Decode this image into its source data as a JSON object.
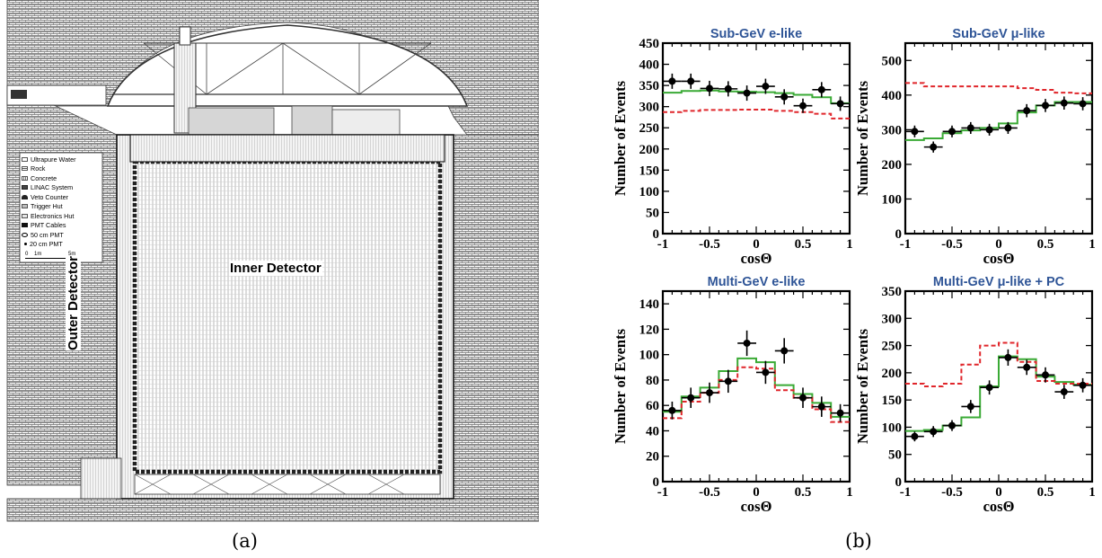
{
  "captions": {
    "left": "(a)",
    "right": "(b)"
  },
  "detector": {
    "legend": [
      {
        "icon": "ultrapure-water-icon",
        "label": "Ultrapure Water"
      },
      {
        "icon": "rock-icon",
        "label": "Rock"
      },
      {
        "icon": "concrete-icon",
        "label": "Concrete"
      },
      {
        "icon": "linac-system-icon",
        "label": "LINAC System"
      },
      {
        "icon": "veto-counter-icon",
        "label": "Veto Counter"
      },
      {
        "icon": "trigger-hut-icon",
        "label": "Trigger Hut"
      },
      {
        "icon": "electronics-hut-icon",
        "label": "Electronics Hut"
      },
      {
        "icon": "pmt-cables-icon",
        "label": "PMT Cables"
      },
      {
        "icon": "pmt-50cm-icon",
        "label": "50 cm PMT"
      },
      {
        "icon": "pmt-20cm-icon",
        "label": "20 cm PMT"
      }
    ],
    "scale_labels": [
      "0",
      "1m",
      "5m"
    ],
    "inner_label": "Inner Detector",
    "outer_label": "Outer Detector",
    "colors": {
      "hatch": "#555555",
      "frame": "#222222",
      "pmt_grid": "#9a9a9a"
    }
  },
  "chart_data": [
    {
      "type": "line",
      "title": "Sub-GeV e-like",
      "xlabel": "cosΘ",
      "ylabel": "Number of Events",
      "xlim": [
        -1,
        1
      ],
      "ylim": [
        0,
        450
      ],
      "xticks": [
        -1,
        -0.5,
        0,
        0.5,
        1
      ],
      "xticklabels": [
        "-1",
        "-0.5",
        "0",
        "0.5",
        "1"
      ],
      "yticks": [
        0,
        50,
        100,
        150,
        200,
        250,
        300,
        350,
        400,
        450
      ],
      "bin_edges": [
        -1,
        -0.8,
        -0.6,
        -0.4,
        -0.2,
        0,
        0.2,
        0.4,
        0.6,
        0.8,
        1
      ],
      "series": [
        {
          "style": "data-points",
          "color": "#000000",
          "x": [
            -0.9,
            -0.7,
            -0.5,
            -0.3,
            -0.1,
            0.1,
            0.3,
            0.5,
            0.7,
            0.9
          ],
          "values": [
            360,
            360,
            343,
            342,
            332,
            348,
            323,
            302,
            340,
            307
          ],
          "errors": [
            18,
            18,
            18,
            18,
            18,
            18,
            18,
            17,
            18,
            17
          ]
        },
        {
          "style": "solid-step",
          "color": "#3aaa35",
          "values": [
            333,
            337,
            338,
            336,
            335,
            334,
            332,
            328,
            322,
            308
          ]
        },
        {
          "style": "dashed-step",
          "color": "#e0262b",
          "values": [
            287,
            290,
            292,
            292,
            293,
            293,
            290,
            287,
            283,
            272
          ]
        }
      ]
    },
    {
      "type": "line",
      "title": "Sub-GeV μ-like",
      "xlabel": "cosΘ",
      "ylabel": "Number of Events",
      "xlim": [
        -1,
        1
      ],
      "ylim": [
        0,
        550
      ],
      "xticks": [
        -1,
        -0.5,
        0,
        0.5,
        1
      ],
      "xticklabels": [
        "-1",
        "-0.5",
        "0",
        "0.5",
        "1"
      ],
      "yticks": [
        0,
        100,
        200,
        300,
        400,
        500
      ],
      "bin_edges": [
        -1,
        -0.8,
        -0.6,
        -0.4,
        -0.2,
        0,
        0.2,
        0.4,
        0.6,
        0.8,
        1
      ],
      "series": [
        {
          "style": "data-points",
          "color": "#000000",
          "x": [
            -0.9,
            -0.7,
            -0.5,
            -0.3,
            -0.1,
            0.1,
            0.3,
            0.5,
            0.7,
            0.9
          ],
          "values": [
            295,
            250,
            295,
            305,
            300,
            305,
            355,
            370,
            377,
            375
          ],
          "errors": [
            17,
            16,
            17,
            17,
            17,
            17,
            19,
            19,
            19,
            19
          ]
        },
        {
          "style": "solid-step",
          "color": "#3aaa35",
          "values": [
            270,
            275,
            290,
            298,
            305,
            318,
            350,
            370,
            380,
            380
          ]
        },
        {
          "style": "dashed-step",
          "color": "#e0262b",
          "values": [
            435,
            425,
            425,
            425,
            425,
            425,
            420,
            415,
            407,
            405
          ]
        }
      ]
    },
    {
      "type": "line",
      "title": "Multi-GeV e-like",
      "xlabel": "cosΘ",
      "ylabel": "Number of Events",
      "xlim": [
        -1,
        1
      ],
      "ylim": [
        0,
        150
      ],
      "xticks": [
        -1,
        -0.5,
        0,
        0.5,
        1
      ],
      "xticklabels": [
        "-1",
        "-0.5",
        "0",
        "0.5",
        "1"
      ],
      "yticks": [
        0,
        20,
        40,
        60,
        80,
        100,
        120,
        140
      ],
      "bin_edges": [
        -1,
        -0.8,
        -0.6,
        -0.4,
        -0.2,
        0,
        0.2,
        0.4,
        0.6,
        0.8,
        1
      ],
      "series": [
        {
          "style": "data-points",
          "color": "#000000",
          "x": [
            -0.9,
            -0.7,
            -0.5,
            -0.3,
            -0.1,
            0.1,
            0.3,
            0.5,
            0.7,
            0.9
          ],
          "values": [
            56,
            66,
            70,
            79,
            109,
            86,
            103,
            66,
            59,
            54
          ],
          "errors": [
            7,
            8,
            8,
            9,
            10,
            9,
            10,
            8,
            8,
            7
          ]
        },
        {
          "style": "solid-step",
          "color": "#3aaa35",
          "values": [
            55,
            67,
            74,
            87,
            97,
            94,
            76,
            69,
            62,
            51
          ]
        },
        {
          "style": "dashed-step",
          "color": "#e0262b",
          "values": [
            50,
            63,
            70,
            80,
            90,
            89,
            72,
            66,
            57,
            47
          ]
        }
      ]
    },
    {
      "type": "line",
      "title": "Multi-GeV μ-like + PC",
      "xlabel": "cosΘ",
      "ylabel": "Number of Events",
      "xlim": [
        -1,
        1
      ],
      "ylim": [
        0,
        350
      ],
      "xticks": [
        -1,
        -0.5,
        0,
        0.5,
        1
      ],
      "xticklabels": [
        "-1",
        "-0.5",
        "0",
        "0.5",
        "1"
      ],
      "yticks": [
        0,
        50,
        100,
        150,
        200,
        250,
        300,
        350
      ],
      "bin_edges": [
        -1,
        -0.8,
        -0.6,
        -0.4,
        -0.2,
        0,
        0.2,
        0.4,
        0.6,
        0.8,
        1
      ],
      "series": [
        {
          "style": "data-points",
          "color": "#000000",
          "x": [
            -0.9,
            -0.7,
            -0.5,
            -0.3,
            -0.1,
            0.1,
            0.3,
            0.5,
            0.7,
            0.9
          ],
          "values": [
            83,
            92,
            103,
            138,
            173,
            228,
            210,
            196,
            165,
            177
          ],
          "errors": [
            9,
            10,
            10,
            12,
            13,
            15,
            14,
            14,
            13,
            13
          ]
        },
        {
          "style": "solid-step",
          "color": "#3aaa35",
          "values": [
            93,
            95,
            103,
            118,
            175,
            230,
            225,
            193,
            183,
            178
          ]
        },
        {
          "style": "dashed-step",
          "color": "#e0262b",
          "values": [
            180,
            175,
            180,
            215,
            250,
            255,
            220,
            185,
            180,
            180
          ]
        }
      ]
    }
  ]
}
